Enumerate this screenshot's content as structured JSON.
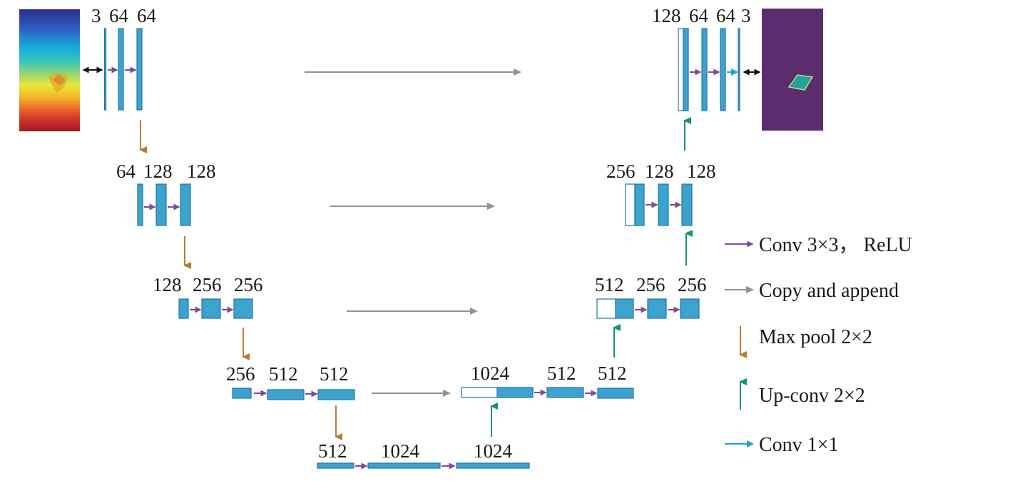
{
  "colors": {
    "conv3": "#7b4a9b",
    "copy": "#8a949a",
    "maxpool": "#c07a30",
    "upconv": "#14956b",
    "conv1": "#1ba3d8",
    "io": "#111111",
    "block": "#3ea2cf",
    "block_stroke": "#1f77a8",
    "output_bg": "#5b2d6e",
    "output_shape": "#1fa49b"
  },
  "levels": [
    {
      "id": "enc1",
      "labels": [
        "3",
        "64",
        "64"
      ]
    },
    {
      "id": "enc2",
      "labels": [
        "64",
        "128",
        "128"
      ]
    },
    {
      "id": "enc3",
      "labels": [
        "128",
        "256",
        "256"
      ]
    },
    {
      "id": "enc4",
      "labels": [
        "256",
        "512",
        "512"
      ]
    },
    {
      "id": "bottleneck",
      "labels": [
        "512",
        "1024",
        "1024"
      ]
    },
    {
      "id": "dec4",
      "labels": [
        "1024",
        "512",
        "512"
      ]
    },
    {
      "id": "dec3",
      "labels": [
        "512",
        "256",
        "256"
      ]
    },
    {
      "id": "dec2",
      "labels": [
        "256",
        "128",
        "128"
      ]
    },
    {
      "id": "dec1",
      "labels": [
        "128",
        "64",
        "64",
        "3"
      ]
    }
  ],
  "legend": [
    {
      "key": "conv3",
      "label": "Conv 3×3， ReLU",
      "icon": "right-arrow"
    },
    {
      "key": "copy",
      "label": "Copy and append",
      "icon": "right-arrow"
    },
    {
      "key": "maxpool",
      "label": "Max pool 2×2",
      "icon": "down-arrow"
    },
    {
      "key": "upconv",
      "label": "Up-conv 2×2",
      "icon": "up-arrow"
    },
    {
      "key": "conv1",
      "label": "Conv 1×1",
      "icon": "right-arrow"
    }
  ]
}
